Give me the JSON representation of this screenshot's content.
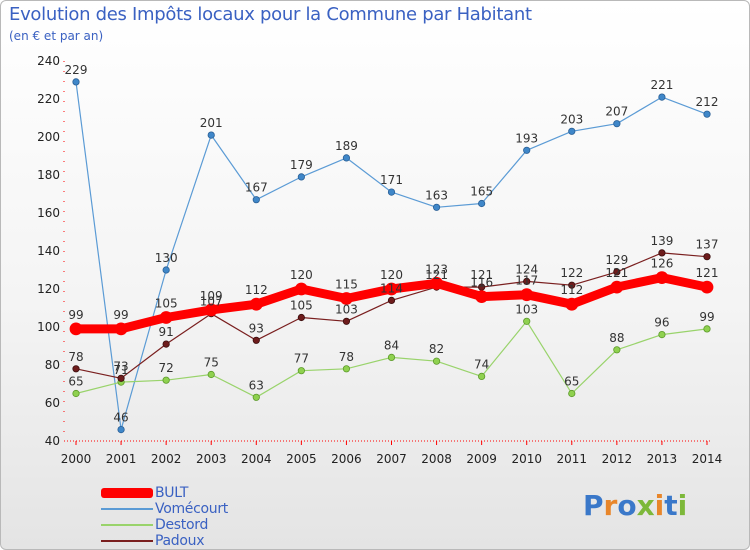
{
  "title": "Evolution des Impôts locaux pour la Commune par Habitant",
  "subtitle": "(en € et par an)",
  "logo": {
    "p": "P",
    "r": "r",
    "o": "o",
    "x": "x",
    "i1": "i",
    "t": "t",
    "i2": "i"
  },
  "colors": {
    "accent": "#3a61c2"
  },
  "chart_data": {
    "type": "line",
    "title": "Evolution des Impôts locaux pour la Commune par Habitant",
    "subtitle": "(en € et par an)",
    "ylabel": "",
    "xlabel": "",
    "ylim": [
      40,
      240
    ],
    "yticks": [
      40,
      60,
      80,
      100,
      120,
      140,
      160,
      180,
      200,
      220,
      240
    ],
    "categories": [
      "2000",
      "2001",
      "2002",
      "2003",
      "2004",
      "2005",
      "2006",
      "2007",
      "2008",
      "2009",
      "2010",
      "2011",
      "2012",
      "2013",
      "2014"
    ],
    "series": [
      {
        "name": "BULT",
        "color": "#ff0000",
        "values": [
          99,
          99,
          105,
          109,
          112,
          120,
          115,
          120,
          123,
          116,
          117,
          112,
          121,
          126,
          121
        ],
        "labels": [
          "99",
          "99",
          "105",
          "109",
          "112",
          "120",
          "115",
          "120",
          "123",
          "116",
          "117",
          "112",
          "121",
          "126",
          "121"
        ]
      },
      {
        "name": "Vomécourt",
        "color": "#5b9bd5",
        "values": [
          229,
          46,
          130,
          201,
          167,
          179,
          189,
          171,
          163,
          165,
          193,
          203,
          207,
          221,
          212
        ],
        "labels": [
          "229",
          "46",
          "130",
          "201",
          "167",
          "179",
          "189",
          "171",
          "163",
          "165",
          "193",
          "203",
          "207",
          "221",
          "212"
        ]
      },
      {
        "name": "Destord",
        "color": "#99d36b",
        "values": [
          65,
          71,
          72,
          75,
          63,
          77,
          78,
          84,
          82,
          74,
          103,
          65,
          88,
          96,
          99
        ],
        "labels": [
          "65",
          "71",
          "72",
          "75",
          "63",
          "77",
          "78",
          "84",
          "82",
          "74",
          "103",
          "65",
          "88",
          "96",
          "99"
        ]
      },
      {
        "name": "Padoux",
        "color": "#7a1f1f",
        "values": [
          78,
          73,
          91,
          107,
          93,
          105,
          103,
          114,
          121,
          121,
          124,
          122,
          129,
          139,
          137
        ],
        "labels": [
          "78",
          "73",
          "91",
          "107",
          "93",
          "105",
          "103",
          "114",
          "121",
          "121",
          "124",
          "122",
          "129",
          "139",
          "137"
        ]
      }
    ],
    "legend_position": "bottom-left",
    "grid": false
  }
}
